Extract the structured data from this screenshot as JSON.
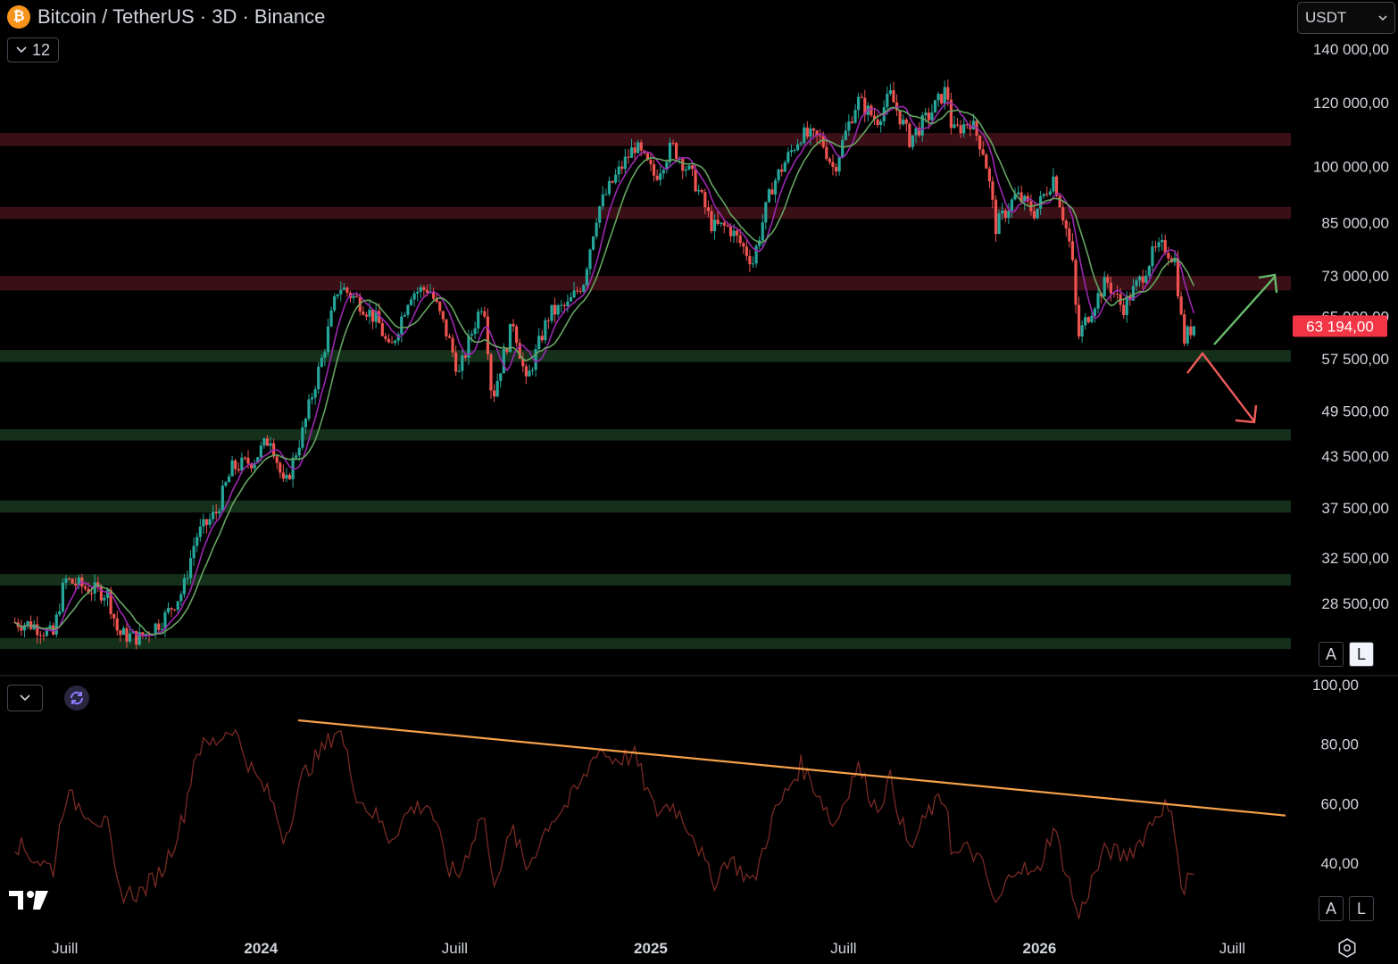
{
  "header": {
    "title": "Bitcoin / TetherUS · 3D · Binance",
    "logo_glyph": "₿",
    "legend_count": "12",
    "currency": "USDT"
  },
  "buttons": {
    "auto": "A",
    "log": "L"
  },
  "colors": {
    "background": "#000000",
    "up_candle": "#26a69a",
    "down_candle": "#ef5350",
    "resistance_zone": "#3a1016",
    "support_zone": "#15301a",
    "ma_fast": "#9c27b0",
    "ma_slow": "#66a562",
    "rsi_line": "#7a2a24",
    "trendline": "#f5a04a",
    "price_label_bg": "#f23645",
    "arrow_up": "#66bb6a",
    "arrow_down": "#f05a5a"
  },
  "chart_data": [
    {
      "type": "line",
      "subtype": "candlestick",
      "title": "Bitcoin / TetherUS · 3D · Binance",
      "scale": "log",
      "y_ticks": [
        "140 000,00",
        "120 000,00",
        "100 000,00",
        "85 000,00",
        "73 000,00",
        "65 000,00",
        "57 500,00",
        "49 500,00",
        "43 500,00",
        "37 500,00",
        "32 500,00",
        "28 500,00"
      ],
      "x_ticks": [
        "Juill",
        "2024",
        "Juill",
        "2025",
        "Juill",
        "2026",
        "Juill"
      ],
      "last_price": 63194,
      "last_price_label": "63 194,00",
      "series": [
        {
          "name": "",
          "points": [
            [
              "2023-05-15",
              27000
            ],
            [
              "2023-06-01",
              26800
            ],
            [
              "2023-06-20",
              26000
            ],
            [
              "2023-07-01",
              30500
            ],
            [
              "2023-07-20",
              29800
            ],
            [
              "2023-08-10",
              29300
            ],
            [
              "2023-08-20",
              26100
            ],
            [
              "2023-09-10",
              25800
            ],
            [
              "2023-10-01",
              27200
            ],
            [
              "2023-10-20",
              29600
            ],
            [
              "2023-11-01",
              34500
            ],
            [
              "2023-11-20",
              37000
            ],
            [
              "2023-12-05",
              42000
            ],
            [
              "2023-12-25",
              43000
            ],
            [
              "2024-01-10",
              46000
            ],
            [
              "2024-01-23",
              39500
            ],
            [
              "2024-02-10",
              47000
            ],
            [
              "2024-02-28",
              58000
            ],
            [
              "2024-03-14",
              71000
            ],
            [
              "2024-04-01",
              68000
            ],
            [
              "2024-04-20",
              64000
            ],
            [
              "2024-05-01",
              58500
            ],
            [
              "2024-05-20",
              69500
            ],
            [
              "2024-06-07",
              70500
            ],
            [
              "2024-06-25",
              61000
            ],
            [
              "2024-07-05",
              55000
            ],
            [
              "2024-07-28",
              68500
            ],
            [
              "2024-08-05",
              51000
            ],
            [
              "2024-08-25",
              64000
            ],
            [
              "2024-09-06",
              53500
            ],
            [
              "2024-09-28",
              65500
            ],
            [
              "2024-10-15",
              67000
            ],
            [
              "2024-10-30",
              72000
            ],
            [
              "2024-11-12",
              88000
            ],
            [
              "2024-11-25",
              95000
            ],
            [
              "2024-12-17",
              106000
            ],
            [
              "2025-01-05",
              97000
            ],
            [
              "2025-01-21",
              106000
            ],
            [
              "2025-02-10",
              96500
            ],
            [
              "2025-02-28",
              84000
            ],
            [
              "2025-03-15",
              84000
            ],
            [
              "2025-04-07",
              76000
            ],
            [
              "2025-04-25",
              94500
            ],
            [
              "2025-05-22",
              109500
            ],
            [
              "2025-06-10",
              108000
            ],
            [
              "2025-06-22",
              99000
            ],
            [
              "2025-07-14",
              121000
            ],
            [
              "2025-08-01",
              114000
            ],
            [
              "2025-08-14",
              122500
            ],
            [
              "2025-09-01",
              108000
            ],
            [
              "2025-09-20",
              116000
            ],
            [
              "2025-10-06",
              125000
            ],
            [
              "2025-10-11",
              110000
            ],
            [
              "2025-10-28",
              114000
            ],
            [
              "2025-11-10",
              104000
            ],
            [
              "2025-11-21",
              84000
            ],
            [
              "2025-12-10",
              92000
            ],
            [
              "2025-12-28",
              87500
            ],
            [
              "2026-01-14",
              97000
            ],
            [
              "2026-01-31",
              78000
            ],
            [
              "2026-02-06",
              61000
            ],
            [
              "2026-02-20",
              67000
            ],
            [
              "2026-03-05",
              72000
            ],
            [
              "2026-03-20",
              66500
            ],
            [
              "2026-04-05",
              72000
            ],
            [
              "2026-04-18",
              78000
            ],
            [
              "2026-04-28",
              79500
            ],
            [
              "2026-05-08",
              76500
            ],
            [
              "2026-05-16",
              60500
            ],
            [
              "2026-05-22",
              62500
            ],
            [
              "2026-05-27",
              63194
            ]
          ]
        }
      ],
      "zones": {
        "resistance": [
          [
            106000,
            110000
          ],
          [
            86000,
            89000
          ],
          [
            70000,
            73000
          ]
        ],
        "support": [
          [
            57000,
            59000
          ],
          [
            45500,
            47000
          ],
          [
            37000,
            38300
          ],
          [
            30000,
            31000
          ],
          [
            25000,
            25800
          ]
        ]
      },
      "annotations": [
        "up arrow (breakout scenario)",
        "down arrow (breakdown scenario)"
      ]
    },
    {
      "type": "line",
      "title": "",
      "y_ticks": [
        "100,00",
        "80,00",
        "60,00",
        "40,00"
      ],
      "ylim": [
        20,
        100
      ],
      "series": [
        {
          "name": "",
          "points": [
            [
              "2023-05-15",
              47
            ],
            [
              "2023-06-01",
              42
            ],
            [
              "2023-06-20",
              38
            ],
            [
              "2023-07-01",
              63
            ],
            [
              "2023-07-20",
              58
            ],
            [
              "2023-08-10",
              52
            ],
            [
              "2023-08-20",
              30
            ],
            [
              "2023-09-10",
              30
            ],
            [
              "2023-10-01",
              38
            ],
            [
              "2023-10-20",
              55
            ],
            [
              "2023-11-01",
              78
            ],
            [
              "2023-11-20",
              81
            ],
            [
              "2023-12-05",
              86
            ],
            [
              "2023-12-25",
              70
            ],
            [
              "2024-01-10",
              62
            ],
            [
              "2024-01-23",
              48
            ],
            [
              "2024-02-10",
              70
            ],
            [
              "2024-02-28",
              78
            ],
            [
              "2024-03-14",
              86
            ],
            [
              "2024-04-01",
              62
            ],
            [
              "2024-04-20",
              55
            ],
            [
              "2024-05-01",
              48
            ],
            [
              "2024-05-20",
              58
            ],
            [
              "2024-06-07",
              60
            ],
            [
              "2024-06-25",
              38
            ],
            [
              "2024-07-05",
              36
            ],
            [
              "2024-07-28",
              58
            ],
            [
              "2024-08-05",
              33
            ],
            [
              "2024-08-25",
              51
            ],
            [
              "2024-09-06",
              38
            ],
            [
              "2024-09-28",
              54
            ],
            [
              "2024-10-15",
              60
            ],
            [
              "2024-10-30",
              68
            ],
            [
              "2024-11-12",
              79
            ],
            [
              "2024-11-25",
              75
            ],
            [
              "2024-12-17",
              76
            ],
            [
              "2025-01-05",
              57
            ],
            [
              "2025-01-21",
              60
            ],
            [
              "2025-02-10",
              50
            ],
            [
              "2025-02-28",
              33
            ],
            [
              "2025-03-15",
              42
            ],
            [
              "2025-04-07",
              33
            ],
            [
              "2025-04-25",
              55
            ],
            [
              "2025-05-22",
              73
            ],
            [
              "2025-06-10",
              62
            ],
            [
              "2025-06-22",
              52
            ],
            [
              "2025-07-14",
              73
            ],
            [
              "2025-08-01",
              58
            ],
            [
              "2025-08-14",
              68
            ],
            [
              "2025-09-01",
              44
            ],
            [
              "2025-09-20",
              58
            ],
            [
              "2025-10-06",
              62
            ],
            [
              "2025-10-11",
              42
            ],
            [
              "2025-10-28",
              45
            ],
            [
              "2025-11-10",
              38
            ],
            [
              "2025-11-21",
              25
            ],
            [
              "2025-12-10",
              40
            ],
            [
              "2025-12-28",
              35
            ],
            [
              "2026-01-14",
              52
            ],
            [
              "2026-01-31",
              31
            ],
            [
              "2026-02-06",
              21
            ],
            [
              "2026-02-20",
              35
            ],
            [
              "2026-03-05",
              45
            ],
            [
              "2026-03-20",
              42
            ],
            [
              "2026-04-05",
              47
            ],
            [
              "2026-04-18",
              55
            ],
            [
              "2026-04-28",
              60
            ],
            [
              "2026-05-08",
              52
            ],
            [
              "2026-05-16",
              28
            ],
            [
              "2026-05-22",
              38
            ],
            [
              "2026-05-27",
              35
            ]
          ]
        }
      ],
      "trendline": [
        [
          "2024-02-05",
          88
        ],
        [
          "2026-08-20",
          56
        ]
      ]
    }
  ]
}
